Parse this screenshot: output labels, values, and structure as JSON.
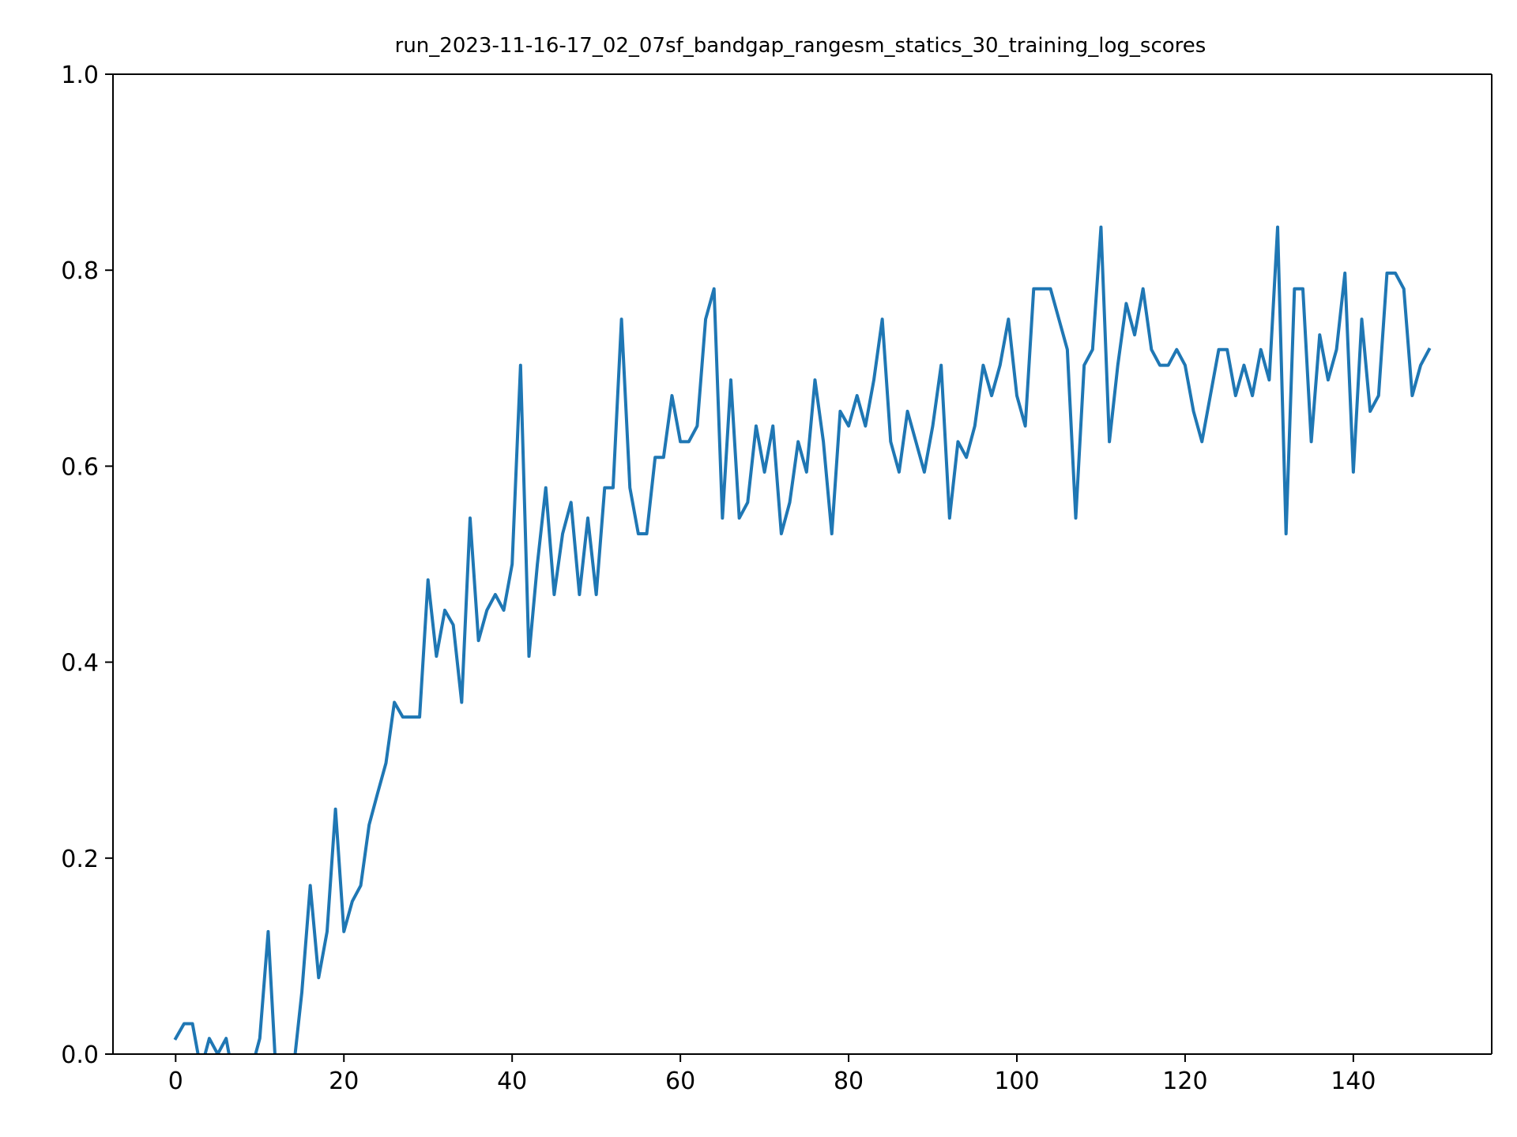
{
  "chart_data": {
    "type": "line",
    "title": "run_2023-11-16-17_02_07sf_bandgap_rangesm_statics_30_training_log_scores",
    "xlabel": "",
    "ylabel": "",
    "xlim": [
      -7.45,
      156.45
    ],
    "ylim": [
      0.0,
      1.0
    ],
    "xticks": [
      0,
      20,
      40,
      60,
      80,
      100,
      120,
      140
    ],
    "yticks": [
      0.0,
      0.2,
      0.4,
      0.6,
      0.8,
      1.0
    ],
    "xtick_labels": [
      "0",
      "20",
      "40",
      "60",
      "80",
      "100",
      "120",
      "140"
    ],
    "ytick_labels": [
      "0.0",
      "0.2",
      "0.4",
      "0.6",
      "0.8",
      "1.0"
    ],
    "grid": false,
    "legend": "none",
    "series": [
      {
        "color": "#1f77b4",
        "x": [
          0,
          1,
          2,
          3,
          4,
          5,
          6,
          7,
          8,
          9,
          10,
          11,
          12,
          13,
          14,
          15,
          16,
          17,
          18,
          19,
          20,
          21,
          22,
          23,
          24,
          25,
          26,
          27,
          28,
          29,
          30,
          31,
          32,
          33,
          34,
          35,
          36,
          37,
          38,
          39,
          40,
          41,
          42,
          43,
          44,
          45,
          46,
          47,
          48,
          49,
          50,
          51,
          52,
          53,
          54,
          55,
          56,
          57,
          58,
          59,
          60,
          61,
          62,
          63,
          64,
          65,
          66,
          67,
          68,
          69,
          70,
          71,
          72,
          73,
          74,
          75,
          76,
          77,
          78,
          79,
          80,
          81,
          82,
          83,
          84,
          85,
          86,
          87,
          88,
          89,
          90,
          91,
          92,
          93,
          94,
          95,
          96,
          97,
          98,
          99,
          100,
          101,
          102,
          103,
          104,
          105,
          106,
          107,
          108,
          109,
          110,
          111,
          112,
          113,
          114,
          115,
          116,
          117,
          118,
          119,
          120,
          121,
          122,
          123,
          124,
          125,
          126,
          127,
          128,
          129,
          130,
          131,
          132,
          133,
          134,
          135,
          136,
          137,
          138,
          139,
          140,
          141,
          142,
          143,
          144,
          145,
          146,
          147,
          148,
          149
        ],
        "values": [
          0.016,
          0.031,
          0.031,
          -0.016,
          0.016,
          0.0,
          0.016,
          -0.031,
          -0.063,
          -0.016,
          0.016,
          0.125,
          -0.031,
          -0.047,
          -0.016,
          0.063,
          0.172,
          0.078,
          0.125,
          0.25,
          0.125,
          0.156,
          0.172,
          0.234,
          0.266,
          0.297,
          0.359,
          0.344,
          0.344,
          0.344,
          0.484,
          0.406,
          0.453,
          0.438,
          0.359,
          0.547,
          0.422,
          0.453,
          0.469,
          0.453,
          0.5,
          0.703,
          0.406,
          0.5,
          0.578,
          0.469,
          0.531,
          0.563,
          0.469,
          0.547,
          0.469,
          0.578,
          0.578,
          0.75,
          0.578,
          0.531,
          0.531,
          0.609,
          0.609,
          0.672,
          0.625,
          0.625,
          0.641,
          0.75,
          0.781,
          0.547,
          0.688,
          0.547,
          0.563,
          0.641,
          0.594,
          0.641,
          0.531,
          0.563,
          0.625,
          0.594,
          0.688,
          0.625,
          0.531,
          0.656,
          0.641,
          0.672,
          0.641,
          0.688,
          0.75,
          0.625,
          0.594,
          0.656,
          0.625,
          0.594,
          0.641,
          0.703,
          0.547,
          0.625,
          0.609,
          0.641,
          0.703,
          0.672,
          0.703,
          0.75,
          0.672,
          0.641,
          0.781,
          0.781,
          0.781,
          0.75,
          0.719,
          0.547,
          0.703,
          0.719,
          0.844,
          0.625,
          0.703,
          0.766,
          0.734,
          0.781,
          0.719,
          0.703,
          0.703,
          0.719,
          0.703,
          0.656,
          0.625,
          0.672,
          0.719,
          0.719,
          0.672,
          0.703,
          0.672,
          0.719,
          0.688,
          0.844,
          0.531,
          0.781,
          0.781,
          0.625,
          0.734,
          0.688,
          0.719,
          0.797,
          0.594,
          0.75,
          0.656,
          0.672,
          0.797,
          0.797,
          0.781,
          0.672,
          0.703,
          0.719
        ]
      }
    ]
  }
}
